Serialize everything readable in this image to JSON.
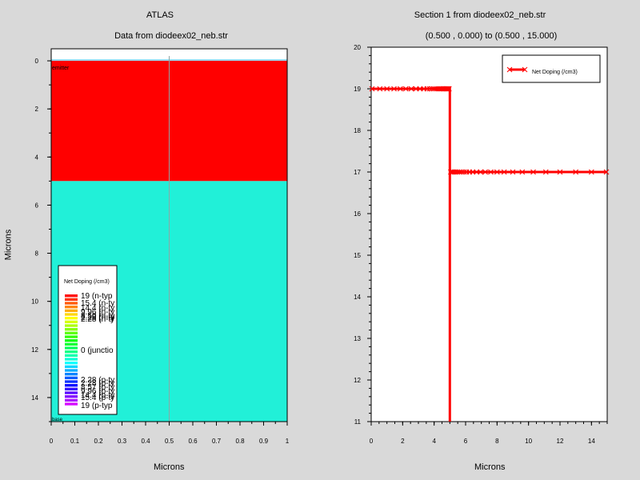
{
  "left_plot": {
    "title": "ATLAS",
    "subtitle": "Data from diodeex02_neb.str",
    "xlabel": "Microns",
    "ylabel": "Microns",
    "region_labels": {
      "top": "emitter",
      "bottom": "base"
    },
    "legend": {
      "title": "Net Doping (/cm3)",
      "entries": [
        "19 (n-typ",
        "15.4 (n-ty",
        "14.4 (n-ty",
        "9.96 (n-ty",
        "8.50 (n-ty",
        "2.28 (n-ty",
        "2.28 (n-ty",
        "0 (junctio",
        "2.28 (p-ty",
        "2.28 (p-ty",
        "8.57 (p-ty",
        "9.96 (p-ty",
        "14.4 (p-ty",
        "15.4 (p-ty",
        "19 (p-typ"
      ]
    }
  },
  "right_plot": {
    "title": "Section 1 from diodeex02_neb.str",
    "subtitle": "(0.500 , 0.000) to (0.500 , 15.000)",
    "xlabel": "Microns",
    "legend_label": "Net Doping (/cm3)"
  },
  "colors": {
    "emitter": "#ff0000",
    "base": "#21f0d8",
    "cut_line": "#8fa5a5",
    "series": "#ff0000"
  },
  "chart_data": [
    {
      "type": "heatmap",
      "title": "ATLAS",
      "subtitle": "Data from diodeex02_neb.str",
      "xlabel": "Microns",
      "ylabel": "Microns",
      "xlim": [
        0,
        1
      ],
      "ylim": [
        15,
        -0.5
      ],
      "xticks": [
        0,
        0.1,
        0.2,
        0.3,
        0.4,
        0.5,
        0.6,
        0.7,
        0.8,
        0.9,
        1
      ],
      "yticks": [
        0,
        2,
        4,
        6,
        8,
        10,
        12,
        14
      ],
      "regions": [
        {
          "name": "emitter",
          "y_from": 0,
          "y_to": 5,
          "color": "#ff0000"
        },
        {
          "name": "base",
          "y_from": 5,
          "y_to": 15,
          "color": "#21f0d8"
        }
      ],
      "cutline_x": 0.5,
      "legend_title": "Net Doping (/cm3)"
    },
    {
      "type": "line",
      "title": "Section 1 from diodeex02_neb.str",
      "subtitle": "(0.500 , 0.000) to (0.500 , 15.000)",
      "xlabel": "Microns",
      "ylabel": "",
      "xlim": [
        0,
        15
      ],
      "ylim": [
        11,
        20
      ],
      "xticks": [
        0,
        2,
        4,
        6,
        8,
        10,
        12,
        14
      ],
      "yticks": [
        11,
        12,
        13,
        14,
        15,
        16,
        17,
        18,
        19,
        20
      ],
      "legend": "top-right",
      "series": [
        {
          "name": "Net Doping (/cm3)",
          "x": [
            0,
            5,
            5,
            5,
            15
          ],
          "y": [
            19,
            19,
            17,
            11,
            17
          ],
          "path": [
            [
              0,
              19
            ],
            [
              5,
              19
            ],
            [
              5,
              11
            ],
            [
              5,
              17
            ],
            [
              15,
              17
            ]
          ],
          "markers_x": [
            0.05,
            0.55,
            1.0,
            1.45,
            1.85,
            2.2,
            2.55,
            2.85,
            3.1,
            3.35,
            3.55,
            3.72,
            3.87,
            4.0,
            4.12,
            4.23,
            4.33,
            4.42,
            4.5,
            4.57,
            4.64,
            4.7,
            4.75,
            4.8,
            4.85,
            4.9,
            4.95,
            5.05,
            5.12,
            5.2,
            5.3,
            5.4,
            5.5,
            5.62,
            5.75,
            5.9,
            6.05,
            6.25,
            6.45,
            6.7,
            6.95,
            7.25,
            7.6,
            8.0,
            8.45,
            9.0,
            9.6,
            10.3,
            11.1,
            12.0,
            13.0,
            14.0,
            14.95
          ],
          "markers_y": [
            19,
            19,
            19,
            19,
            19,
            19,
            19,
            19,
            19,
            19,
            19,
            19,
            19,
            19,
            19,
            19,
            19,
            19,
            19,
            19,
            19,
            19,
            19,
            19,
            19,
            19,
            19,
            17,
            17,
            17,
            17,
            17,
            17,
            17,
            17,
            17,
            17,
            17,
            17,
            17,
            17,
            17,
            17,
            17,
            17,
            17,
            17,
            17,
            17,
            17,
            17,
            17,
            17
          ]
        }
      ]
    }
  ]
}
